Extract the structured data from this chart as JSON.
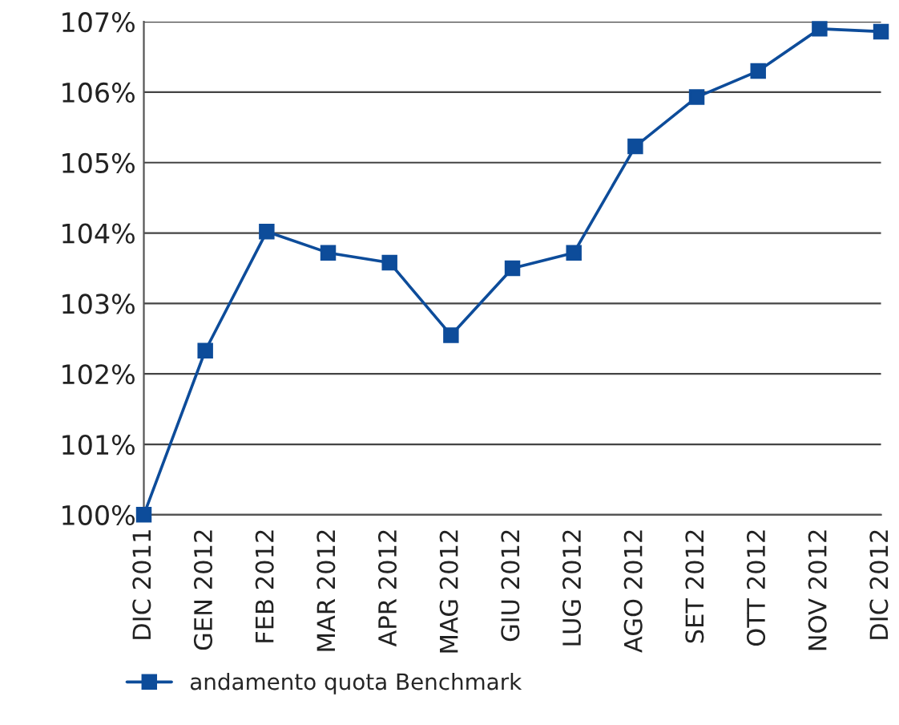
{
  "chart_data": {
    "type": "line",
    "categories": [
      "DIC 2011",
      "GEN 2012",
      "FEB 2012",
      "MAR 2012",
      "APR 2012",
      "MAG 2012",
      "GIU 2012",
      "LUG 2012",
      "AGO 2012",
      "SET 2012",
      "OTT 2012",
      "NOV 2012",
      "DIC 2012"
    ],
    "series": [
      {
        "name": "andamento quota Benchmark",
        "color": "#0d4c9a",
        "values": [
          100.0,
          102.33,
          104.02,
          103.72,
          103.58,
          102.55,
          103.5,
          103.72,
          105.23,
          105.93,
          106.3,
          106.9,
          106.86
        ]
      }
    ],
    "ylim": [
      100,
      107
    ],
    "yticks": [
      {
        "value": 100,
        "label": "100%"
      },
      {
        "value": 101,
        "label": "101%"
      },
      {
        "value": 102,
        "label": "102%"
      },
      {
        "value": 103,
        "label": "103%"
      },
      {
        "value": 104,
        "label": "104%"
      },
      {
        "value": 105,
        "label": "105%"
      },
      {
        "value": 106,
        "label": "106%"
      },
      {
        "value": 107,
        "label": "107%"
      }
    ],
    "grid": "y",
    "legend": "bottom",
    "marker": "square",
    "line_style": "solid"
  }
}
